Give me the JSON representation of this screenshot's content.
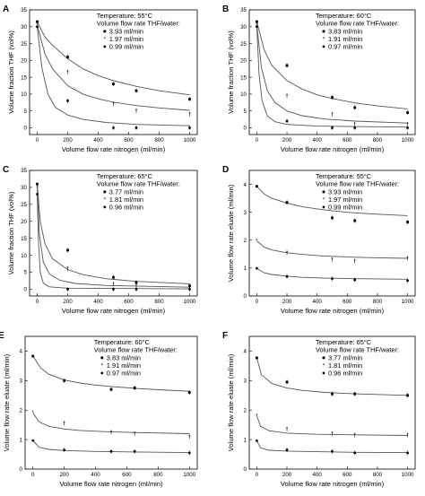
{
  "chart_data": [
    {
      "panel": "A",
      "type": "scatter",
      "xlabel": "Volume flow rate nitrogen (ml/min)",
      "ylabel": "Volume fraction THF (vol%)",
      "xlim": [
        -50,
        1050
      ],
      "ylim": [
        -2,
        35
      ],
      "xticks": [
        0,
        200,
        400,
        600,
        800,
        1000
      ],
      "yticks": [
        0,
        5,
        10,
        15,
        20,
        25,
        30,
        35
      ],
      "legend": {
        "title1": "Temperature: 55°C",
        "title2": "Volume flow rate THF/water:",
        "position": "top-right"
      },
      "series": [
        {
          "name": "3.93 ml/min",
          "x": [
            0,
            200,
            500,
            650,
            1000
          ],
          "y": [
            31.5,
            21,
            13,
            11,
            8.5
          ],
          "fit": [
            [
              0,
              31.5
            ],
            [
              50,
              27
            ],
            [
              100,
              24.5
            ],
            [
              200,
              20.5
            ],
            [
              300,
              17.5
            ],
            [
              400,
              15.5
            ],
            [
              500,
              14
            ],
            [
              650,
              12.3
            ],
            [
              800,
              11
            ],
            [
              1000,
              9.8
            ]
          ]
        },
        {
          "name": "1.97 ml/min",
          "x": [
            0,
            200,
            500,
            650,
            1000
          ],
          "y": [
            30.5,
            16.5,
            7,
            5,
            4
          ],
          "fit": [
            [
              0,
              30.5
            ],
            [
              50,
              22
            ],
            [
              100,
              17.5
            ],
            [
              200,
              12.5
            ],
            [
              300,
              10
            ],
            [
              400,
              8.6
            ],
            [
              500,
              7.6
            ],
            [
              650,
              6.6
            ],
            [
              800,
              5.9
            ],
            [
              1000,
              5.2
            ]
          ]
        },
        {
          "name": "0.99 ml/min",
          "x": [
            0,
            200,
            500,
            650,
            1000
          ],
          "y": [
            30,
            8,
            0,
            0,
            0
          ],
          "fit": [
            [
              0,
              30
            ],
            [
              30,
              18
            ],
            [
              70,
              10
            ],
            [
              120,
              6
            ],
            [
              200,
              3.8
            ],
            [
              300,
              2.5
            ],
            [
              450,
              1.6
            ],
            [
              650,
              1
            ],
            [
              1000,
              0.6
            ]
          ]
        }
      ]
    },
    {
      "panel": "B",
      "type": "scatter",
      "xlabel": "Volume flow rate nitrogen (ml/min)",
      "ylabel": "Volume fraction THF (vol%)",
      "xlim": [
        -50,
        1050
      ],
      "ylim": [
        -2,
        35
      ],
      "xticks": [
        0,
        200,
        400,
        600,
        800,
        1000
      ],
      "yticks": [
        0,
        5,
        10,
        15,
        20,
        25,
        30,
        35
      ],
      "legend": {
        "title1": "Temperature: 60°C",
        "title2": "Volume flow rate THF/water:",
        "position": "top-right"
      },
      "series": [
        {
          "name": "3.83 ml/min",
          "x": [
            0,
            200,
            500,
            650,
            1000
          ],
          "y": [
            31.5,
            18.5,
            9,
            6,
            4.5
          ],
          "fit": [
            [
              0,
              31.5
            ],
            [
              50,
              23
            ],
            [
              100,
              18.5
            ],
            [
              200,
              14
            ],
            [
              300,
              11.5
            ],
            [
              400,
              9.8
            ],
            [
              500,
              8.7
            ],
            [
              650,
              7.4
            ],
            [
              800,
              6.5
            ],
            [
              1000,
              5.6
            ]
          ]
        },
        {
          "name": "1.91 ml/min",
          "x": [
            0,
            200,
            500,
            650,
            1000
          ],
          "y": [
            30.5,
            9.5,
            4,
            1,
            1
          ],
          "fit": [
            [
              0,
              30.5
            ],
            [
              30,
              18
            ],
            [
              70,
              11
            ],
            [
              120,
              7.5
            ],
            [
              200,
              5
            ],
            [
              300,
              3.6
            ],
            [
              450,
              2.6
            ],
            [
              650,
              2
            ],
            [
              1000,
              1.4
            ]
          ]
        },
        {
          "name": "0.97 ml/min",
          "x": [
            0,
            200,
            500,
            650,
            1000
          ],
          "y": [
            30,
            2,
            0,
            0,
            0
          ],
          "fit": [
            [
              0,
              30
            ],
            [
              15,
              16
            ],
            [
              35,
              8
            ],
            [
              70,
              3.5
            ],
            [
              120,
              1.8
            ],
            [
              200,
              1
            ],
            [
              400,
              0.5
            ],
            [
              1000,
              0.2
            ]
          ]
        }
      ]
    },
    {
      "panel": "C",
      "type": "scatter",
      "xlabel": "Volume flow rate nitrogen (ml/min)",
      "ylabel": "Volume fraction THF (vol%)",
      "xlim": [
        -50,
        1050
      ],
      "ylim": [
        -2,
        35
      ],
      "xticks": [
        0,
        200,
        400,
        600,
        800,
        1000
      ],
      "yticks": [
        0,
        5,
        10,
        15,
        20,
        25,
        30,
        35
      ],
      "legend": {
        "title1": "Temperature: 65°C",
        "title2": "Volume flow rate THF/water:",
        "position": "top-right"
      },
      "series": [
        {
          "name": "3.77 ml/min",
          "x": [
            0,
            200,
            500,
            650,
            1000
          ],
          "y": [
            31,
            11.5,
            3.5,
            2,
            1
          ],
          "fit": [
            [
              0,
              31
            ],
            [
              20,
              20
            ],
            [
              50,
              13.5
            ],
            [
              100,
              9
            ],
            [
              200,
              5.8
            ],
            [
              300,
              4.3
            ],
            [
              450,
              3.1
            ],
            [
              650,
              2.3
            ],
            [
              1000,
              1.6
            ]
          ]
        },
        {
          "name": "1.81 ml/min",
          "x": [
            0,
            200,
            500,
            650,
            1000
          ],
          "y": [
            30,
            6,
            1.5,
            1,
            0.5
          ],
          "fit": [
            [
              0,
              30
            ],
            [
              15,
              16
            ],
            [
              40,
              8
            ],
            [
              80,
              4.5
            ],
            [
              150,
              2.6
            ],
            [
              250,
              1.7
            ],
            [
              450,
              1.1
            ],
            [
              1000,
              0.6
            ]
          ]
        },
        {
          "name": "0.96 ml/min",
          "x": [
            0,
            200,
            500,
            650,
            1000
          ],
          "y": [
            28,
            0,
            0,
            0,
            0
          ],
          "fit": [
            [
              0,
              28
            ],
            [
              8,
              14
            ],
            [
              20,
              5
            ],
            [
              40,
              1.8
            ],
            [
              80,
              0.7
            ],
            [
              200,
              0.3
            ],
            [
              1000,
              0.1
            ]
          ]
        }
      ]
    },
    {
      "panel": "D",
      "type": "scatter",
      "xlabel": "Volume flow rate nitrogen (ml/min)",
      "ylabel": "Volume flow rate eluate (ml/min)",
      "xlim": [
        -50,
        1050
      ],
      "ylim": [
        0,
        4.5
      ],
      "xticks": [
        0,
        200,
        400,
        600,
        800,
        1000
      ],
      "yticks": [
        0,
        1,
        2,
        3,
        4
      ],
      "legend": {
        "title1": "Temperature: 55°C",
        "title2": "Volume flow rate THF/water:",
        "position": "top-right"
      },
      "series": [
        {
          "name": "3.93 ml/min",
          "x": [
            0,
            200,
            500,
            650,
            1000
          ],
          "y": [
            3.93,
            3.35,
            2.8,
            2.7,
            2.65
          ],
          "fit": [
            [
              0,
              3.93
            ],
            [
              50,
              3.65
            ],
            [
              100,
              3.5
            ],
            [
              200,
              3.33
            ],
            [
              300,
              3.2
            ],
            [
              400,
              3.12
            ],
            [
              500,
              3.05
            ],
            [
              650,
              2.98
            ],
            [
              800,
              2.93
            ],
            [
              1000,
              2.88
            ]
          ]
        },
        {
          "name": "1.97 ml/min",
          "x": [
            0,
            200,
            500,
            650,
            1000
          ],
          "y": [
            1.97,
            1.55,
            1.3,
            1.25,
            1.35
          ],
          "fit": [
            [
              0,
              1.97
            ],
            [
              50,
              1.75
            ],
            [
              100,
              1.65
            ],
            [
              200,
              1.55
            ],
            [
              300,
              1.49
            ],
            [
              400,
              1.45
            ],
            [
              500,
              1.42
            ],
            [
              650,
              1.39
            ],
            [
              800,
              1.37
            ],
            [
              1000,
              1.35
            ]
          ]
        },
        {
          "name": "0.99 ml/min",
          "x": [
            0,
            200,
            500,
            650,
            1000
          ],
          "y": [
            0.99,
            0.7,
            0.62,
            0.58,
            0.55
          ],
          "fit": [
            [
              0,
              0.99
            ],
            [
              50,
              0.83
            ],
            [
              100,
              0.77
            ],
            [
              200,
              0.71
            ],
            [
              300,
              0.67
            ],
            [
              450,
              0.64
            ],
            [
              650,
              0.62
            ],
            [
              1000,
              0.6
            ]
          ]
        }
      ]
    },
    {
      "panel": "E",
      "type": "scatter",
      "xlabel": "Volume flow rate nitrogen (ml/min)",
      "ylabel": "Volume flow rate eluate (ml/min)",
      "xlim": [
        -50,
        1050
      ],
      "ylim": [
        0,
        4.5
      ],
      "xticks": [
        0,
        200,
        400,
        600,
        800,
        1000
      ],
      "yticks": [
        0,
        1,
        2,
        3,
        4
      ],
      "legend": {
        "title1": "Temperature: 60°C",
        "title2": "Volume flow rate THF/water:",
        "position": "top-right"
      },
      "series": [
        {
          "name": "3.83 ml/min",
          "x": [
            0,
            200,
            500,
            650,
            1000
          ],
          "y": [
            3.83,
            3.0,
            2.7,
            2.75,
            2.6
          ],
          "fit": [
            [
              0,
              3.83
            ],
            [
              50,
              3.42
            ],
            [
              100,
              3.22
            ],
            [
              200,
              3.02
            ],
            [
              300,
              2.92
            ],
            [
              400,
              2.85
            ],
            [
              500,
              2.8
            ],
            [
              650,
              2.74
            ],
            [
              800,
              2.69
            ],
            [
              1000,
              2.64
            ]
          ]
        },
        {
          "name": "1.91 ml/min",
          "x": [
            0,
            200,
            500,
            650,
            1000
          ],
          "y": [
            1.91,
            1.55,
            1.25,
            1.2,
            1.1
          ],
          "fit": [
            [
              0,
              1.91
            ],
            [
              40,
              1.6
            ],
            [
              100,
              1.45
            ],
            [
              200,
              1.36
            ],
            [
              300,
              1.31
            ],
            [
              450,
              1.27
            ],
            [
              650,
              1.24
            ],
            [
              1000,
              1.2
            ]
          ]
        },
        {
          "name": "0.97 ml/min",
          "x": [
            0,
            200,
            500,
            650,
            1000
          ],
          "y": [
            0.97,
            0.65,
            0.6,
            0.6,
            0.55
          ],
          "fit": [
            [
              0,
              0.97
            ],
            [
              40,
              0.74
            ],
            [
              100,
              0.67
            ],
            [
              200,
              0.63
            ],
            [
              400,
              0.6
            ],
            [
              650,
              0.58
            ],
            [
              1000,
              0.56
            ]
          ]
        }
      ]
    },
    {
      "panel": "F",
      "type": "scatter",
      "xlabel": "Volume flow rate nitrogen (ml/min)",
      "ylabel": "Volume flow rate eluate (ml/min)",
      "xlim": [
        -50,
        1050
      ],
      "ylim": [
        0,
        4.5
      ],
      "xticks": [
        0,
        200,
        400,
        600,
        800,
        1000
      ],
      "yticks": [
        0,
        1,
        2,
        3,
        4
      ],
      "legend": {
        "title1": "Temperature: 65°C",
        "title2": "Volume flow rate THF/water:",
        "position": "top-right"
      },
      "series": [
        {
          "name": "3.77 ml/min",
          "x": [
            0,
            200,
            500,
            650,
            1000
          ],
          "y": [
            3.77,
            2.95,
            2.55,
            2.55,
            2.5
          ],
          "fit": [
            [
              0,
              3.77
            ],
            [
              30,
              3.2
            ],
            [
              100,
              2.9
            ],
            [
              200,
              2.75
            ],
            [
              300,
              2.67
            ],
            [
              450,
              2.6
            ],
            [
              650,
              2.55
            ],
            [
              1000,
              2.5
            ]
          ]
        },
        {
          "name": "1.81 ml/min",
          "x": [
            0,
            200,
            500,
            650,
            1000
          ],
          "y": [
            1.81,
            1.35,
            1.2,
            1.15,
            1.15
          ],
          "fit": [
            [
              0,
              1.81
            ],
            [
              25,
              1.45
            ],
            [
              80,
              1.3
            ],
            [
              200,
              1.22
            ],
            [
              400,
              1.18
            ],
            [
              650,
              1.16
            ],
            [
              1000,
              1.14
            ]
          ]
        },
        {
          "name": "0.96 ml/min",
          "x": [
            0,
            200,
            500,
            650,
            1000
          ],
          "y": [
            0.96,
            0.65,
            0.6,
            0.55,
            0.55
          ],
          "fit": [
            [
              0,
              0.96
            ],
            [
              25,
              0.72
            ],
            [
              80,
              0.64
            ],
            [
              200,
              0.61
            ],
            [
              400,
              0.59
            ],
            [
              650,
              0.57
            ],
            [
              1000,
              0.56
            ]
          ]
        }
      ]
    }
  ]
}
